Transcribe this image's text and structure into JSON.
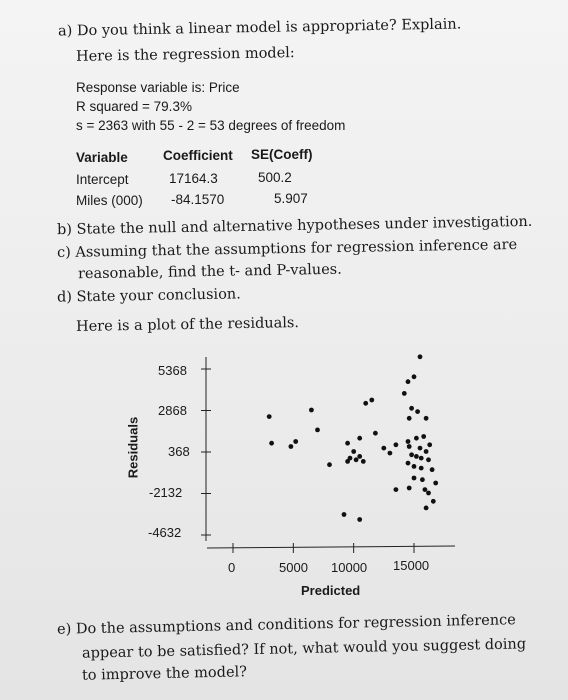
{
  "question_a": {
    "prompt": "a) Do you think a linear model is appropriate? Explain.",
    "intro": "Here is the regression model:"
  },
  "regression_output": {
    "response_line": "Response variable is: Price",
    "r_squared_line": "R squared = 79.3%",
    "s_line": "s = 2363 with 55 - 2 = 53 degrees of freedom",
    "headers": [
      "Variable",
      "Coefficient",
      "SE(Coeff)"
    ],
    "rows": [
      {
        "variable": "Intercept",
        "coefficient": "17164.3",
        "se": "500.2"
      },
      {
        "variable": "Miles (000)",
        "coefficient": "-84.1570",
        "se": "5.907"
      }
    ]
  },
  "question_b": "b) State the null and alternative hypotheses under investigation.",
  "question_c_line1": "c) Assuming that the assumptions for regression inference are",
  "question_c_line2": "reasonable, find the t- and P-values.",
  "question_d": "d) State your conclusion.",
  "plot_intro": "Here is a plot of the residuals.",
  "chart_data": {
    "type": "scatter",
    "xlabel": "Predicted",
    "ylabel": "Residuals",
    "x_ticks": [
      "0",
      "5000",
      "10000",
      "15000"
    ],
    "y_ticks": [
      "5368",
      "2868",
      "368",
      "-2132",
      "-4632"
    ],
    "xlim": [
      0,
      17500
    ],
    "ylim": [
      -4632,
      5368
    ],
    "points": [
      [
        3000,
        2500
      ],
      [
        3200,
        900
      ],
      [
        4800,
        700
      ],
      [
        5200,
        1000
      ],
      [
        8000,
        -400
      ],
      [
        9200,
        -3400
      ],
      [
        10500,
        -3700
      ],
      [
        6500,
        2900
      ],
      [
        11000,
        3300
      ],
      [
        11500,
        3500
      ],
      [
        9500,
        900
      ],
      [
        10500,
        1200
      ],
      [
        11800,
        1500
      ],
      [
        10000,
        400
      ],
      [
        10500,
        100
      ],
      [
        9700,
        0
      ],
      [
        10200,
        -100
      ],
      [
        10800,
        -200
      ],
      [
        12500,
        600
      ],
      [
        13000,
        300
      ],
      [
        13500,
        800
      ],
      [
        14500,
        4600
      ],
      [
        14200,
        3900
      ],
      [
        15000,
        4900
      ],
      [
        15500,
        6100
      ],
      [
        14800,
        3000
      ],
      [
        15300,
        2800
      ],
      [
        14600,
        2400
      ],
      [
        16000,
        2400
      ],
      [
        14500,
        1000
      ],
      [
        15200,
        1200
      ],
      [
        15800,
        1300
      ],
      [
        16300,
        800
      ],
      [
        14600,
        700
      ],
      [
        15500,
        600
      ],
      [
        16000,
        400
      ],
      [
        14800,
        200
      ],
      [
        15200,
        100
      ],
      [
        15600,
        0
      ],
      [
        16200,
        -100
      ],
      [
        14500,
        -300
      ],
      [
        15000,
        -500
      ],
      [
        15600,
        -600
      ],
      [
        16500,
        -700
      ],
      [
        15000,
        -1200
      ],
      [
        15700,
        -1300
      ],
      [
        16800,
        -1500
      ],
      [
        14600,
        -1800
      ],
      [
        15900,
        -1900
      ],
      [
        16200,
        -2100
      ],
      [
        13500,
        -1900
      ],
      [
        16600,
        -2600
      ],
      [
        16000,
        -3000
      ],
      [
        9500,
        -200
      ],
      [
        7000,
        1700
      ]
    ]
  },
  "question_e": {
    "line1": "e) Do the assumptions and conditions for regression inference",
    "line2": "appear to be satisfied? If not, what would you suggest doing",
    "line3": "to improve the model?"
  }
}
